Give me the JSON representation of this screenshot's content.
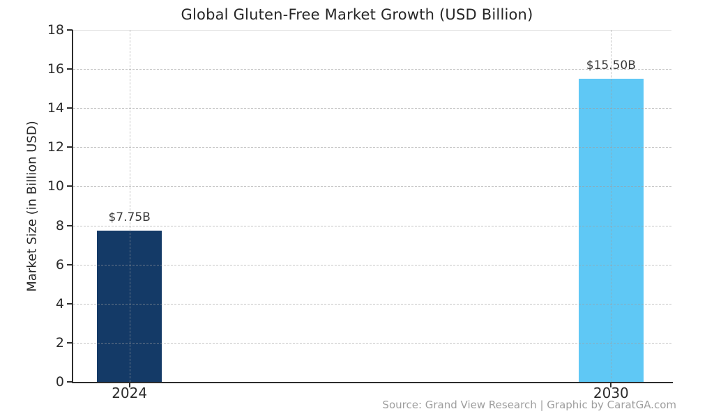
{
  "chart_data": {
    "type": "bar",
    "title": "Global Gluten-Free Market Growth (USD Billion)",
    "ylabel": "Market Size (in Billion USD)",
    "xlabel": "",
    "categories": [
      "2024",
      "2030"
    ],
    "values": [
      7.75,
      15.5
    ],
    "bar_value_labels": [
      "$7.75B",
      "$15.50B"
    ],
    "bar_colors": [
      "#143a67",
      "#5fc8f5"
    ],
    "ylim": [
      0,
      18
    ],
    "ytick_step": 2,
    "ytick_labels": [
      "0",
      "2",
      "4",
      "6",
      "8",
      "10",
      "12",
      "14",
      "16",
      "18"
    ],
    "grid": {
      "horizontal": "dashed at every y tick",
      "vertical": "dashed at each bar center",
      "color": "#c9c9c9"
    },
    "legend": "none",
    "layout": {
      "bar_centers_frac": [
        0.094,
        0.899
      ],
      "bar_width_frac": 0.108
    }
  },
  "footer": {
    "source_credit": "Source: Grand View Research | Graphic by CaratGA.com"
  },
  "colors": {
    "background": "#ffffff",
    "axis_spine": "#2e2e2e",
    "title_text": "#262626",
    "tick_text": "#2b2b2b",
    "value_label_text": "#3a3a3a",
    "source_text": "#9e9e9e",
    "bar_2024": "#143a67",
    "bar_2030": "#5fc8f5"
  }
}
